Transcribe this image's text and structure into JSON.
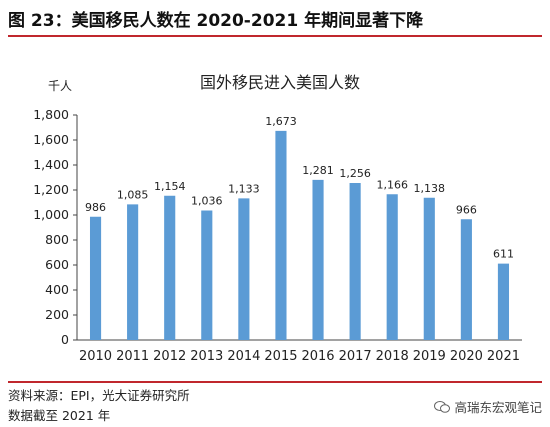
{
  "figure_title": "图 23：美国移民人数在 2020-2021 年期间显著下降",
  "source": "资料来源：EPI，光大证券研究所",
  "note": "数据截至 2021 年",
  "watermark": "高瑞东宏观笔记",
  "watermark_icon": "wechat-icon",
  "colors": {
    "bar": "#5b9bd5",
    "accent": "#c0272d"
  },
  "chart_data": {
    "type": "bar",
    "title": "国外移民进入美国人数",
    "unit_label": "千人",
    "xlabel": "",
    "ylabel": "",
    "categories": [
      "2010",
      "2011",
      "2012",
      "2013",
      "2014",
      "2015",
      "2016",
      "2017",
      "2018",
      "2019",
      "2020",
      "2021"
    ],
    "values": [
      986,
      1085,
      1154,
      1036,
      1133,
      1673,
      1281,
      1256,
      1166,
      1138,
      966,
      611
    ],
    "data_labels": [
      "986",
      "1,085",
      "1,154",
      "1,036",
      "1,133",
      "1,673",
      "1,281",
      "1,256",
      "1,166",
      "1,138",
      "966",
      "611"
    ],
    "ylim": [
      0,
      1800
    ],
    "yticks": [
      0,
      200,
      400,
      600,
      800,
      1000,
      1200,
      1400,
      1600,
      1800
    ],
    "ytick_labels": [
      "0",
      "200",
      "400",
      "600",
      "800",
      "1,000",
      "1,200",
      "1,400",
      "1,600",
      "1,800"
    ],
    "grid": false,
    "legend": "none"
  }
}
